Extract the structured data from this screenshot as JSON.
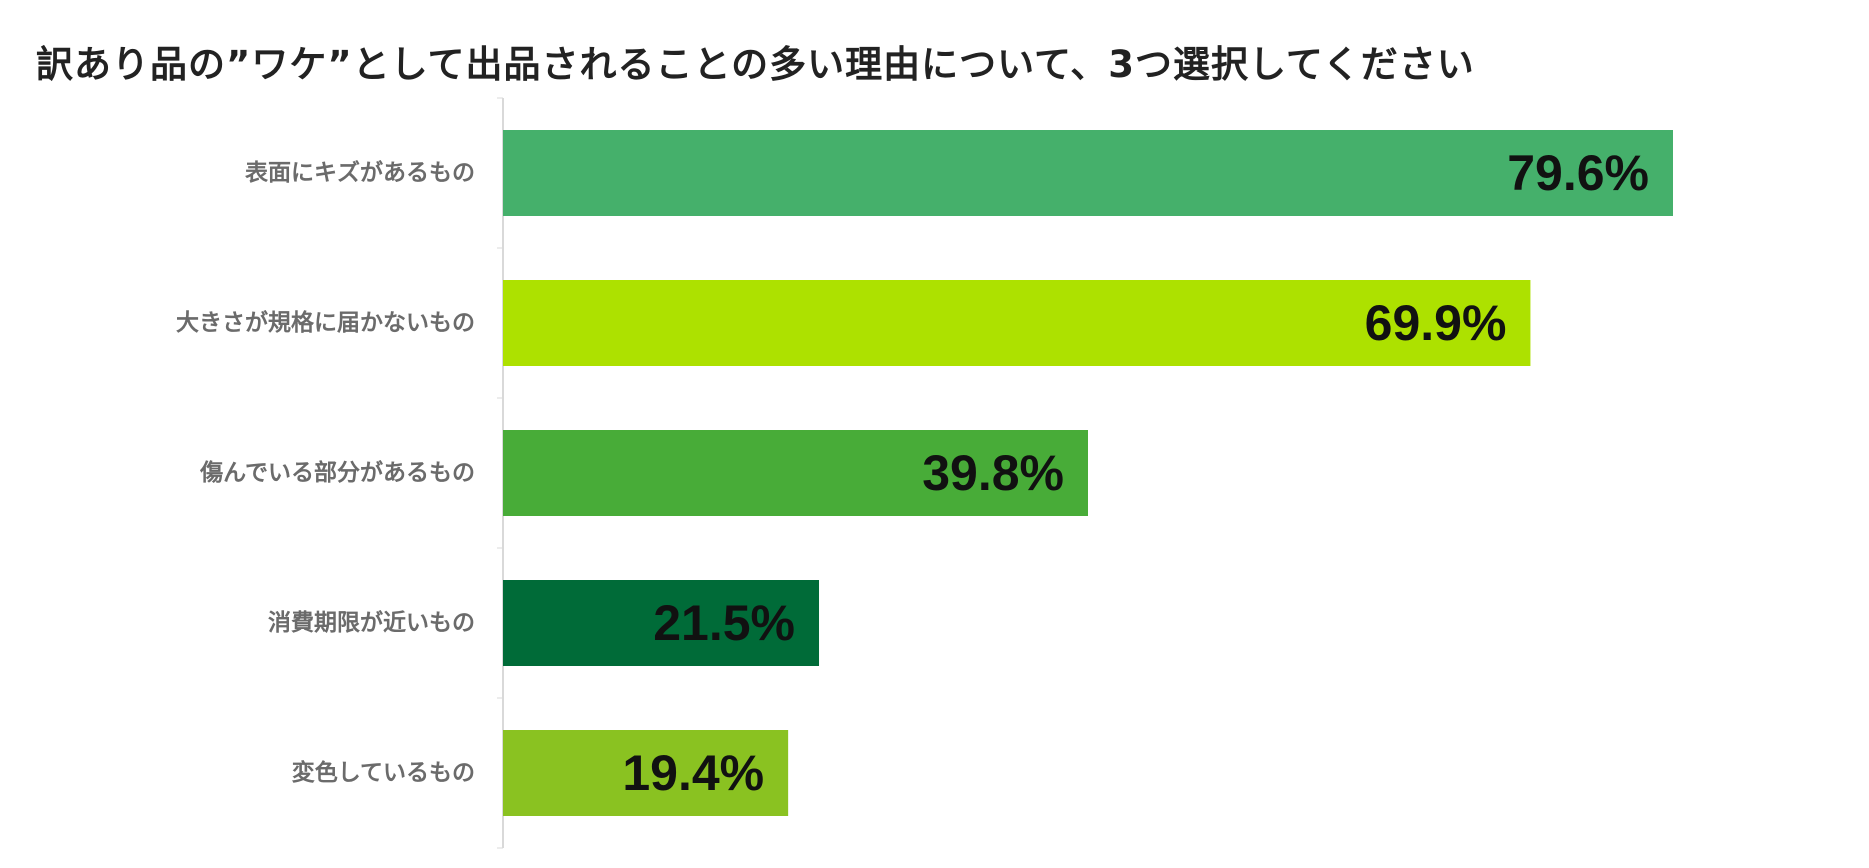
{
  "chart_data": {
    "type": "bar",
    "orientation": "horizontal",
    "title": "訳あり品の”ワケ”として出品されることの多い理由について、3つ選択してください",
    "categories": [
      "表面にキズがあるもの",
      "大きさが規格に届かないもの",
      "傷んでいる部分があるもの",
      "消費期限が近いもの",
      "変色しているもの"
    ],
    "values": [
      79.6,
      69.9,
      39.8,
      21.5,
      19.4
    ],
    "value_labels": [
      "79.6%",
      "69.9%",
      "39.8%",
      "21.5%",
      "19.4%"
    ],
    "unit": "%",
    "colors": [
      "#45b06b",
      "#ade100",
      "#48ac38",
      "#006b38",
      "#8ac221"
    ],
    "xlim": [
      0,
      100
    ],
    "grid": false,
    "legend": "none"
  }
}
